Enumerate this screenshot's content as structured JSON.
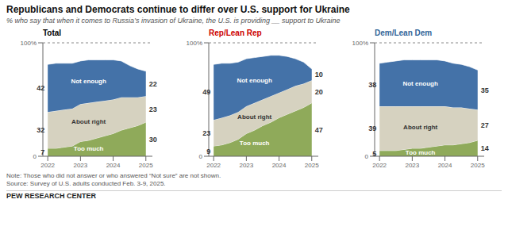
{
  "title": "Republicans and Democrats continue to differ over U.S. support for Ukraine",
  "subtitle": "% who say that when it comes to Russia’s invasion of Ukraine, the U.S. is providing __ support to Ukraine",
  "note": "Note: Those who did not answer or who answered “Not sure” are not shown.",
  "source": "Source: Survey of U.S. adults conducted Feb. 3-9, 2025.",
  "branding": "PEW RESEARCH CENTER",
  "chart_data": [
    {
      "type": "area",
      "title": "Total",
      "color": "#000000",
      "stacked": true,
      "x": [
        2022,
        2022.25,
        2022.5,
        2022.75,
        2023,
        2023.25,
        2023.5,
        2023.75,
        2024,
        2024.25,
        2024.5,
        2024.75,
        2025
      ],
      "xlim": [
        2021.85,
        2025.2
      ],
      "xticks": [
        2022,
        2023,
        2024,
        2025
      ],
      "ylim": [
        0,
        100
      ],
      "yticks": [
        0,
        {
          "value": 100,
          "label": "100%"
        }
      ],
      "series": [
        {
          "name": "Too much",
          "color": "#8faa5a",
          "values": [
            7,
            7,
            8,
            9,
            13,
            14,
            16,
            18,
            20,
            23,
            25,
            27,
            30
          ]
        },
        {
          "name": "About right",
          "color": "#d6d2c0",
          "values": [
            32,
            33,
            33,
            33,
            33,
            33,
            32,
            31,
            30,
            29,
            27,
            25,
            23
          ]
        },
        {
          "name": "Not enough",
          "color": "#4472a8",
          "values": [
            42,
            42,
            41,
            40,
            38,
            38,
            37,
            36,
            35,
            32,
            28,
            25,
            22
          ]
        }
      ],
      "annotations": [
        {
          "x": 2022,
          "series": "Too much",
          "text": "7"
        },
        {
          "x": 2022,
          "series": "About right",
          "text": "32"
        },
        {
          "x": 2022,
          "series": "Not enough",
          "text": "42"
        },
        {
          "x": 2025,
          "series": "Too much",
          "text": "30"
        },
        {
          "x": 2025,
          "series": "About right",
          "text": "23"
        },
        {
          "x": 2025,
          "series": "Not enough",
          "text": "22"
        }
      ]
    },
    {
      "type": "area",
      "title": "Rep/Lean Rep",
      "color": "#cc0000",
      "stacked": true,
      "x": [
        2022,
        2022.25,
        2022.5,
        2022.75,
        2023,
        2023.25,
        2023.5,
        2023.75,
        2024,
        2024.25,
        2024.5,
        2024.75,
        2025
      ],
      "xlim": [
        2021.85,
        2025.2
      ],
      "xticks": [
        2022,
        2023,
        2024,
        2025
      ],
      "ylim": [
        0,
        100
      ],
      "yticks": [
        0,
        {
          "value": 100,
          "label": "100%"
        }
      ],
      "series": [
        {
          "name": "Too much",
          "color": "#8faa5a",
          "values": [
            9,
            10,
            12,
            15,
            20,
            23,
            27,
            30,
            34,
            37,
            40,
            43,
            47
          ]
        },
        {
          "name": "About right",
          "color": "#d6d2c0",
          "values": [
            23,
            24,
            24,
            24,
            24,
            24,
            23,
            23,
            22,
            22,
            22,
            21,
            20
          ]
        },
        {
          "name": "Not enough",
          "color": "#4472a8",
          "values": [
            49,
            48,
            46,
            44,
            42,
            40,
            38,
            36,
            33,
            29,
            24,
            19,
            10
          ]
        }
      ],
      "annotations": [
        {
          "x": 2022,
          "series": "Too much",
          "text": "9"
        },
        {
          "x": 2022,
          "series": "About right",
          "text": "23"
        },
        {
          "x": 2022,
          "series": "Not enough",
          "text": "49"
        },
        {
          "x": 2025,
          "series": "Too much",
          "text": "47"
        },
        {
          "x": 2025,
          "series": "About right",
          "text": "20"
        },
        {
          "x": 2025,
          "series": "Not enough",
          "text": "10"
        }
      ]
    },
    {
      "type": "area",
      "title": "Dem/Lean Dem",
      "color": "#336699",
      "stacked": true,
      "x": [
        2022,
        2022.25,
        2022.5,
        2022.75,
        2023,
        2023.25,
        2023.5,
        2023.75,
        2024,
        2024.25,
        2024.5,
        2024.75,
        2025
      ],
      "xlim": [
        2021.85,
        2025.2
      ],
      "xticks": [
        2022,
        2023,
        2024,
        2025
      ],
      "ylim": [
        0,
        100
      ],
      "yticks": [
        0,
        {
          "value": 100,
          "label": "100%"
        }
      ],
      "series": [
        {
          "name": "Too much",
          "color": "#8faa5a",
          "values": [
            5,
            5,
            5,
            6,
            7,
            7,
            8,
            9,
            10,
            10,
            11,
            12,
            14
          ]
        },
        {
          "name": "About right",
          "color": "#d6d2c0",
          "values": [
            39,
            39,
            39,
            38,
            37,
            37,
            36,
            35,
            34,
            33,
            32,
            30,
            27
          ]
        },
        {
          "name": "Not enough",
          "color": "#4472a8",
          "values": [
            38,
            39,
            40,
            41,
            41,
            41,
            41,
            41,
            40,
            39,
            38,
            37,
            35
          ]
        }
      ],
      "annotations": [
        {
          "x": 2022,
          "series": "Too much",
          "text": "5"
        },
        {
          "x": 2022,
          "series": "About right",
          "text": "39"
        },
        {
          "x": 2022,
          "series": "Not enough",
          "text": "38"
        },
        {
          "x": 2025,
          "series": "Too much",
          "text": "14"
        },
        {
          "x": 2025,
          "series": "About right",
          "text": "27"
        },
        {
          "x": 2025,
          "series": "Not enough",
          "text": "35"
        }
      ]
    }
  ]
}
